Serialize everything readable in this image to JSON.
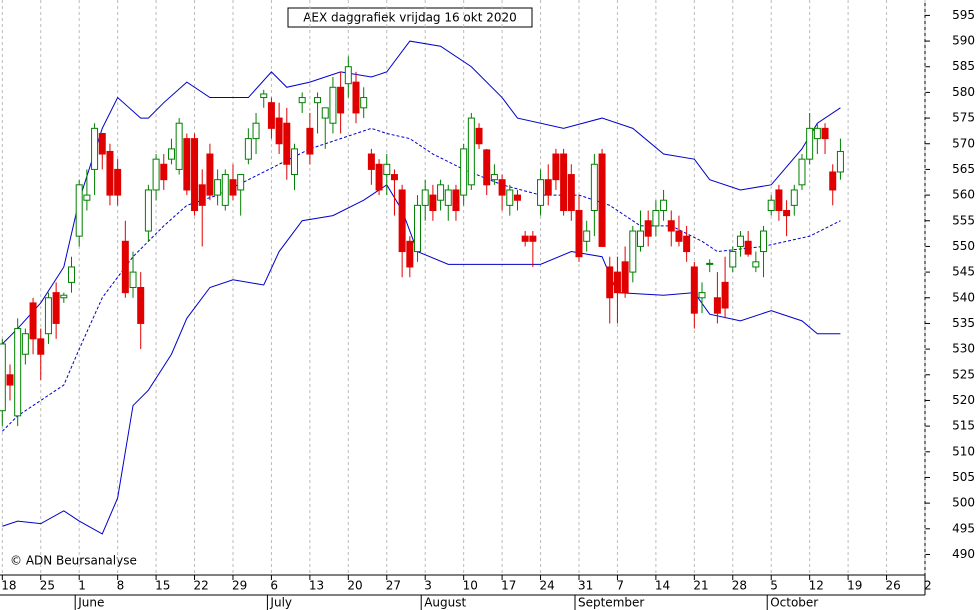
{
  "chart_data": {
    "type": "candlestick",
    "title": "AEX daggrafiek vrijdag 16 okt 2020",
    "credit": "© ADN Beursanalyse",
    "up_color": "#008000",
    "down_color": "#e00000",
    "band_color": "#0000cc",
    "x": [
      0,
      1,
      2,
      3,
      4,
      5,
      6,
      7,
      8,
      9,
      10,
      11,
      12,
      13,
      14,
      15,
      16,
      17,
      18,
      19,
      20,
      21,
      22,
      23,
      24,
      25,
      26,
      27,
      28,
      29,
      30,
      31,
      32,
      33,
      34,
      35,
      36,
      37,
      38,
      39,
      40,
      41,
      42,
      43,
      44,
      45,
      46,
      47,
      48,
      49,
      50,
      51,
      52,
      53,
      54,
      55,
      56,
      57,
      58,
      59,
      60,
      61,
      62,
      63,
      64,
      65,
      66,
      67,
      68,
      69,
      70,
      71,
      72,
      73,
      74,
      75,
      76,
      77,
      78,
      79,
      80,
      81,
      82,
      83,
      84,
      85,
      86,
      87,
      88,
      89,
      90,
      91,
      92,
      93,
      94,
      95,
      96,
      97,
      98,
      99,
      100,
      101,
      102,
      103,
      104,
      105,
      106,
      107,
      108,
      109
    ],
    "open": [
      518,
      525,
      517,
      529,
      539,
      532,
      533,
      541,
      540,
      543,
      552,
      559,
      565,
      572,
      568.5,
      565,
      551,
      542,
      542,
      553,
      561,
      566,
      567,
      565,
      571,
      571,
      562,
      568,
      560,
      558,
      563,
      561,
      567,
      571,
      579,
      578,
      575,
      574,
      564,
      578,
      573,
      578,
      575,
      574,
      581,
      581.7,
      582,
      577,
      568,
      566,
      564,
      564,
      561,
      551,
      549,
      558,
      560,
      559,
      558,
      561,
      560,
      562,
      573,
      568.8,
      563,
      563,
      558,
      560,
      552,
      552,
      558,
      563,
      568,
      568,
      564,
      557,
      551,
      557,
      568,
      546,
      545,
      547,
      545,
      550,
      555,
      554,
      557,
      555,
      553,
      552,
      546,
      540,
      546.5,
      540,
      543,
      546,
      550,
      551,
      546,
      549,
      557,
      561,
      557,
      558,
      562,
      567,
      571,
      573,
      564.5,
      564.5
    ],
    "high": [
      532,
      527,
      536,
      534,
      540,
      534,
      541,
      543,
      541,
      548,
      563,
      565,
      574,
      571,
      570,
      567,
      555,
      549,
      545,
      562,
      568,
      568,
      571,
      575,
      572,
      572,
      565,
      570,
      565,
      565,
      566,
      564,
      573,
      576,
      580.5,
      579,
      578,
      577,
      570,
      580,
      576,
      580,
      577,
      583,
      584,
      587,
      584,
      581,
      569,
      567,
      568,
      565,
      562,
      552,
      560,
      563,
      562,
      563,
      562,
      562,
      570,
      576,
      574,
      569,
      566,
      564,
      562,
      561,
      553,
      553,
      565,
      566,
      569,
      569,
      566,
      560,
      555,
      568,
      569,
      548,
      548,
      550,
      554,
      557,
      557,
      559,
      561,
      557,
      556,
      554,
      547,
      543,
      547.5,
      545,
      548,
      550,
      553,
      553,
      549,
      554,
      560,
      562,
      559,
      562,
      568,
      576,
      574,
      574,
      566,
      571
    ],
    "low": [
      515,
      520,
      515,
      527,
      529,
      524,
      531,
      532,
      539,
      541,
      550,
      557,
      560,
      565,
      558,
      558,
      540,
      540,
      530,
      551,
      559,
      561,
      566,
      564,
      560,
      556,
      550,
      559,
      558,
      557,
      559,
      556,
      566,
      568,
      577,
      571,
      568,
      563,
      561,
      576,
      566,
      572,
      569,
      572,
      572,
      579,
      574,
      575,
      562,
      560,
      560,
      556,
      544,
      544,
      547,
      555,
      555,
      557,
      555,
      555,
      558,
      561,
      569,
      560,
      562,
      557,
      556,
      557,
      550,
      546,
      556,
      558,
      561,
      556,
      555,
      547,
      549,
      552,
      550,
      535,
      535,
      540,
      543,
      549,
      550,
      552,
      555,
      550,
      550,
      547,
      534,
      537,
      545,
      535,
      536,
      545,
      548,
      548,
      545,
      544,
      556,
      555,
      552,
      556,
      561,
      566,
      568,
      568,
      558,
      563
    ],
    "close": [
      531,
      523,
      534,
      533,
      532,
      529,
      540,
      535,
      540.5,
      546,
      562,
      560,
      573,
      568,
      560,
      560,
      541,
      545,
      535,
      561,
      567,
      563,
      569,
      574,
      561,
      557,
      558,
      560,
      563,
      564,
      560,
      564,
      571,
      574,
      579.7,
      573,
      570,
      566,
      569,
      579,
      568,
      579,
      577,
      581,
      576,
      585,
      576,
      579,
      565,
      561,
      566,
      563,
      549,
      546,
      558,
      561,
      557,
      562,
      561,
      557,
      569,
      575,
      570,
      562,
      564,
      560,
      561,
      559,
      551,
      551,
      563,
      560,
      563,
      557,
      557,
      548,
      553,
      566,
      550,
      540,
      541,
      541,
      553,
      553,
      552,
      557,
      559,
      553,
      551,
      549,
      537,
      541,
      546.7,
      537,
      538,
      549,
      552,
      548.5,
      547,
      553,
      559,
      557,
      556,
      561,
      567,
      573,
      573,
      571,
      561,
      568.5
    ],
    "bands": [
      {
        "x": [
          0,
          2,
          5,
          8,
          10,
          13,
          15,
          18,
          19,
          21,
          24,
          27,
          30,
          32,
          35,
          37,
          40,
          44,
          48,
          50,
          53,
          57,
          61,
          65,
          67,
          73,
          78,
          82,
          86,
          90,
          92,
          96,
          100,
          104,
          106,
          109
        ],
        "values": [
          531,
          534,
          539,
          546,
          559,
          573,
          579,
          575,
          575,
          578,
          582,
          579,
          579,
          579,
          584,
          581,
          582,
          584,
          583,
          584,
          590,
          589,
          585,
          579,
          575,
          573,
          575,
          573,
          568,
          567,
          563,
          561,
          562,
          569,
          574,
          577
        ],
        "dashed": false
      },
      {
        "x": [
          0,
          2,
          5,
          8,
          10,
          13,
          17,
          21,
          24,
          28,
          32,
          36,
          40,
          44,
          48,
          50,
          53,
          56,
          60,
          65,
          70,
          75,
          79,
          83,
          87,
          91,
          93,
          99,
          102,
          105,
          109
        ],
        "values": [
          514,
          517,
          520,
          523,
          530,
          540,
          548,
          554,
          558,
          560,
          563,
          566,
          569,
          571,
          573,
          572,
          571,
          568,
          565,
          562,
          560,
          560,
          558,
          554,
          554,
          551,
          549,
          550,
          551,
          552,
          555
        ],
        "dashed": true
      },
      {
        "x": [
          0,
          2,
          5,
          8,
          10,
          13,
          15,
          17,
          19,
          22,
          24,
          27,
          30,
          34,
          36,
          39,
          43,
          47,
          50,
          52,
          54,
          58,
          65,
          70,
          74,
          78,
          80,
          86,
          90,
          92,
          96,
          100,
          104,
          106,
          109
        ],
        "values": [
          495.5,
          496.5,
          496,
          498.5,
          496.5,
          494,
          501,
          519,
          522,
          529,
          536,
          542,
          543.5,
          542.5,
          549,
          555,
          556,
          559,
          562,
          557,
          549,
          546.5,
          546.5,
          546.5,
          549,
          548,
          541,
          540.5,
          541,
          536.8,
          535.5,
          537.5,
          535.5,
          533,
          533
        ],
        "dashed": false
      }
    ],
    "xlim": [
      -0.3,
      120
    ],
    "ylim": [
      486,
      598
    ],
    "yticks": [
      490,
      495,
      500,
      505,
      510,
      515,
      520,
      525,
      530,
      535,
      540,
      545,
      550,
      555,
      560,
      565,
      570,
      575,
      580,
      585,
      590,
      595
    ],
    "xticks": [
      {
        "value": 0,
        "label": "18"
      },
      {
        "value": 5,
        "label": "25"
      },
      {
        "value": 10,
        "label": "1"
      },
      {
        "value": 15,
        "label": "8"
      },
      {
        "value": 20,
        "label": "15"
      },
      {
        "value": 25,
        "label": "22"
      },
      {
        "value": 30,
        "label": "29"
      },
      {
        "value": 35,
        "label": "6"
      },
      {
        "value": 40,
        "label": "13"
      },
      {
        "value": 45,
        "label": "20"
      },
      {
        "value": 50,
        "label": "27"
      },
      {
        "value": 55,
        "label": "3"
      },
      {
        "value": 60,
        "label": "10"
      },
      {
        "value": 65,
        "label": "17"
      },
      {
        "value": 70,
        "label": "24"
      },
      {
        "value": 75,
        "label": "31"
      },
      {
        "value": 80,
        "label": "7"
      },
      {
        "value": 85,
        "label": "14"
      },
      {
        "value": 90,
        "label": "21"
      },
      {
        "value": 95,
        "label": "28"
      },
      {
        "value": 100,
        "label": "5"
      },
      {
        "value": 105,
        "label": "12"
      },
      {
        "value": 110,
        "label": "19"
      },
      {
        "value": 115,
        "label": "26"
      },
      {
        "value": 120,
        "label": "2"
      }
    ],
    "months": [
      {
        "value": 10,
        "label": "June"
      },
      {
        "value": 35,
        "label": "July"
      },
      {
        "value": 55,
        "label": "August"
      },
      {
        "value": 75,
        "label": "September"
      },
      {
        "value": 100,
        "label": "October"
      }
    ],
    "grid": true
  }
}
